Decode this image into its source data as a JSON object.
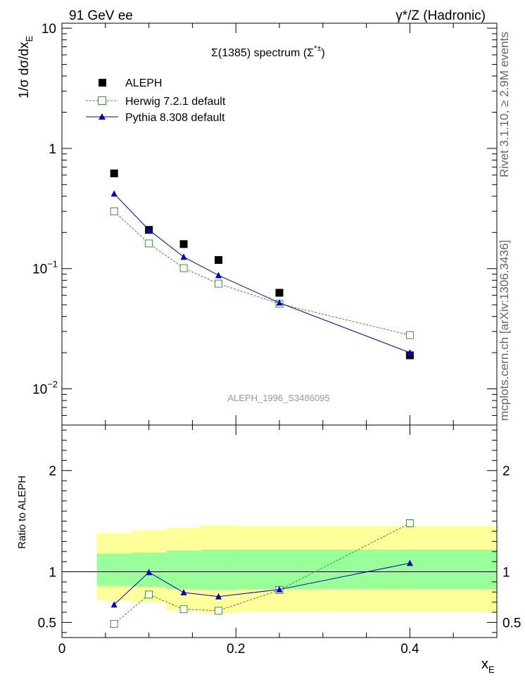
{
  "header": {
    "left_label": "91 GeV ee",
    "right_label": "γ*/Z (Hadronic)"
  },
  "side_labels": {
    "rivet": "Rivet 3.1.10, ≥ 2.9M events",
    "mcplots": "mcplots.cern.ch [arXiv:1306.3436]"
  },
  "chart_data": [
    {
      "type": "scatter",
      "panel": "main",
      "title": "Σ(1385) spectrum (Σ*±)",
      "title_main": "Σ(1385) spectrum (Σ",
      "title_sup": "*±",
      "title_close": ")",
      "ylabel": "1/σ dσ/dx",
      "ylabel_sub": "E",
      "watermark": "ALEPH_1996_S3486095",
      "yscale": "log",
      "ylim": [
        0.005,
        11
      ],
      "xlim": [
        0,
        0.5
      ],
      "y_ticks": [
        {
          "value": 0.01,
          "base": "10",
          "exp": "−2"
        },
        {
          "value": 0.1,
          "base": "10",
          "exp": "−1"
        },
        {
          "value": 1,
          "base": "1",
          "exp": ""
        },
        {
          "value": 10,
          "base": "10",
          "exp": ""
        }
      ],
      "legend_position": "top-left",
      "series": [
        {
          "name": "ALEPH",
          "marker": "square-filled",
          "color": "#000000",
          "x": [
            0.06,
            0.1,
            0.14,
            0.18,
            0.25,
            0.4
          ],
          "y": [
            0.62,
            0.21,
            0.16,
            0.118,
            0.063,
            0.019
          ]
        },
        {
          "name": "Herwig 7.2.1 default",
          "marker": "square-open",
          "line": "dashed",
          "color": "#339933",
          "x": [
            0.06,
            0.1,
            0.14,
            0.18,
            0.25,
            0.4
          ],
          "y": [
            0.3,
            0.162,
            0.101,
            0.075,
            0.051,
            0.028
          ]
        },
        {
          "name": "Pythia 8.308 default",
          "marker": "triangle",
          "line": "solid",
          "color": "#0000cc",
          "x": [
            0.06,
            0.1,
            0.14,
            0.18,
            0.25,
            0.4
          ],
          "y": [
            0.42,
            0.21,
            0.125,
            0.088,
            0.052,
            0.02
          ]
        }
      ]
    },
    {
      "type": "scatter",
      "panel": "ratio",
      "ylabel": "Ratio to ALEPH",
      "xlabel": "x",
      "xlabel_sub": "E",
      "ylim": [
        0.35,
        2.45
      ],
      "xlim": [
        0,
        0.5
      ],
      "x_ticks": [
        "0",
        "0.2",
        "0.4"
      ],
      "x_tick_values": [
        0,
        0.2,
        0.4
      ],
      "y_ticks": [
        "0.5",
        "1",
        "2"
      ],
      "y_tick_values": [
        0.5,
        1,
        2
      ],
      "reference_line": 1,
      "bands": [
        {
          "x0": 0.04,
          "x1": 0.08,
          "yellow": [
            0.72,
            1.38
          ],
          "green": [
            0.86,
            1.18
          ]
        },
        {
          "x0": 0.08,
          "x1": 0.12,
          "yellow": [
            0.7,
            1.41
          ],
          "green": [
            0.85,
            1.19
          ]
        },
        {
          "x0": 0.12,
          "x1": 0.16,
          "yellow": [
            0.62,
            1.44
          ],
          "green": [
            0.83,
            1.21
          ]
        },
        {
          "x0": 0.16,
          "x1": 0.2,
          "yellow": [
            0.59,
            1.46
          ],
          "green": [
            0.82,
            1.22
          ]
        },
        {
          "x0": 0.2,
          "x1": 0.3,
          "yellow": [
            0.6,
            1.45
          ],
          "green": [
            0.83,
            1.22
          ]
        },
        {
          "x0": 0.3,
          "x1": 0.5,
          "yellow": [
            0.6,
            1.45
          ],
          "green": [
            0.83,
            1.22
          ]
        }
      ],
      "series": [
        {
          "name": "Herwig 7.2.1 default",
          "marker": "square-open",
          "line": "dashed",
          "color": "#339933",
          "x": [
            0.06,
            0.1,
            0.14,
            0.18,
            0.25,
            0.4
          ],
          "y": [
            0.485,
            0.775,
            0.63,
            0.615,
            0.82,
            1.48
          ]
        },
        {
          "name": "Pythia 8.308 default",
          "marker": "triangle",
          "line": "solid",
          "color": "#0000cc",
          "x": [
            0.06,
            0.1,
            0.14,
            0.18,
            0.25,
            0.4
          ],
          "y": [
            0.675,
            0.995,
            0.795,
            0.755,
            0.825,
            1.085
          ]
        }
      ]
    }
  ]
}
